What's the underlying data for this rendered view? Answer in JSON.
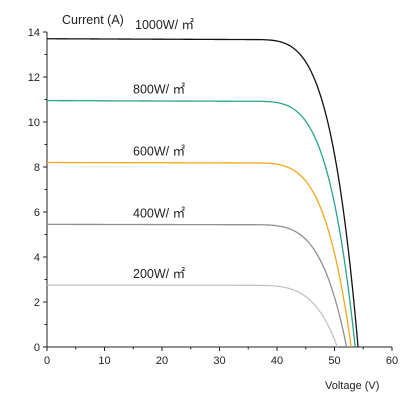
{
  "chart_data": {
    "type": "line",
    "title": "",
    "ylabel": "Current (A)",
    "xlabel": "Voltage   (V)",
    "xlim": [
      0,
      60
    ],
    "ylim": [
      0,
      14
    ],
    "xticks": [
      0,
      10,
      20,
      30,
      40,
      50,
      60
    ],
    "yticks": [
      0,
      2,
      4,
      6,
      8,
      10,
      12,
      14
    ],
    "grid": false,
    "series": [
      {
        "name": "1000W/ ㎡",
        "color": "#111111",
        "isc": 13.7,
        "vmp": 38.5,
        "voc": 54.1
      },
      {
        "name": "800W/ ㎡",
        "color": "#2aa58a",
        "isc": 10.95,
        "vmp": 38.5,
        "voc": 53.6
      },
      {
        "name": "600W/ ㎡",
        "color": "#f2a81d",
        "isc": 8.2,
        "vmp": 38.3,
        "voc": 52.9
      },
      {
        "name": "400W/ ㎡",
        "color": "#8f8f8f",
        "isc": 5.45,
        "vmp": 38.2,
        "voc": 52.1
      },
      {
        "name": "200W/ ㎡",
        "color": "#c4c4c4",
        "isc": 2.75,
        "vmp": 38.0,
        "voc": 50.5
      }
    ]
  }
}
